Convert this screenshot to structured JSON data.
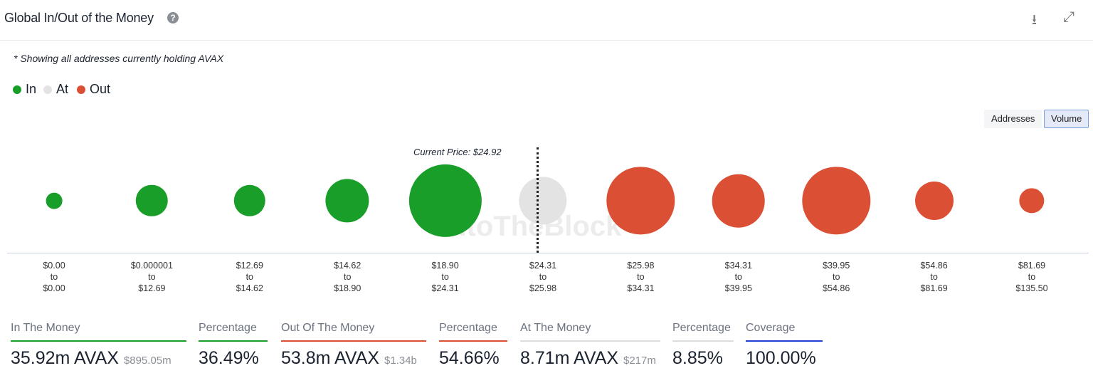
{
  "header": {
    "title": "Global In/Out of the Money",
    "help_icon": "question-circle-icon",
    "download_icon": "download-icon",
    "expand_icon": "expand-icon"
  },
  "note": "* Showing all addresses currently holding AVAX",
  "legend": [
    {
      "label": "In",
      "color": "#1a9e2a"
    },
    {
      "label": "At",
      "color": "#e3e3e3"
    },
    {
      "label": "Out",
      "color": "#db4f35"
    }
  ],
  "toggles": {
    "addresses": "Addresses",
    "volume": "Volume",
    "active": "Volume"
  },
  "watermark": "IntoTheBlock",
  "chart_data": {
    "type": "bubble",
    "current_price_label": "Current Price: $24.92",
    "current_price": 24.92,
    "size_metric": "Volume (m AVAX, estimated from bubble area)",
    "buckets": [
      {
        "from": "$0.00",
        "to": "$0.00",
        "status": "in",
        "volume": 1.0
      },
      {
        "from": "$0.000001",
        "to": "$12.69",
        "status": "in",
        "volume": 3.8
      },
      {
        "from": "$12.69",
        "to": "$14.62",
        "status": "in",
        "volume": 3.8
      },
      {
        "from": "$14.62",
        "to": "$18.90",
        "status": "in",
        "volume": 7.2
      },
      {
        "from": "$18.90",
        "to": "$24.31",
        "status": "in",
        "volume": 20.1
      },
      {
        "from": "$24.31",
        "to": "$25.98",
        "status": "at",
        "volume": 8.71
      },
      {
        "from": "$25.98",
        "to": "$34.31",
        "status": "out",
        "volume": 17.5
      },
      {
        "from": "$34.31",
        "to": "$39.95",
        "status": "out",
        "volume": 10.7
      },
      {
        "from": "$39.95",
        "to": "$54.86",
        "status": "out",
        "volume": 17.5
      },
      {
        "from": "$54.86",
        "to": "$81.69",
        "status": "out",
        "volume": 5.6
      },
      {
        "from": "$81.69",
        "to": "$135.50",
        "status": "out",
        "volume": 2.4
      }
    ],
    "to_word": "to"
  },
  "stats": {
    "in": {
      "label": "In The Money",
      "value": "35.92m AVAX",
      "usd": "$895.05m",
      "pct_label": "Percentage",
      "pct": "36.49%",
      "color": "#1a9e2a"
    },
    "out": {
      "label": "Out Of The Money",
      "value": "53.8m AVAX",
      "usd": "$1.34b",
      "pct_label": "Percentage",
      "pct": "54.66%",
      "color": "#db4f35"
    },
    "at": {
      "label": "At The Money",
      "value": "8.71m AVAX",
      "usd": "$217m",
      "pct_label": "Percentage",
      "pct": "8.85%",
      "color": "#dddddd"
    },
    "coverage": {
      "label": "Coverage",
      "value": "100.00%",
      "color": "#2340d6"
    }
  }
}
